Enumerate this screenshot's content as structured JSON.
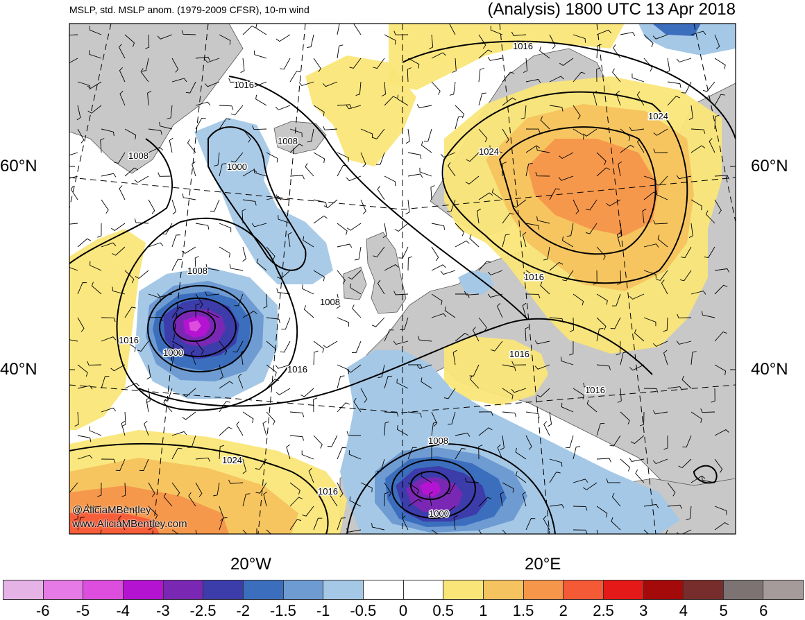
{
  "title_left": "MSLP, std. MSLP anom. (1979-2009 CFSR), 10-m wind",
  "title_right": "(Analysis) 1800 UTC 13 Apr 2018",
  "lat_labels": [
    "60°N",
    "40°N"
  ],
  "lon_labels": [
    "20°W",
    "20°E"
  ],
  "credits": [
    "@AliciaMBentley",
    "www.AliciaMBentley.com"
  ],
  "isobar_labels": [
    "1016",
    "1016",
    "1008",
    "1008",
    "1000",
    "1024",
    "1024",
    "1008",
    "1008",
    "1016",
    "1000",
    "1016",
    "1016",
    "1016",
    "1016",
    "1008",
    "1024",
    "1016",
    "1000"
  ],
  "colorbar": {
    "colors": [
      "#e6b3e6",
      "#e67ae6",
      "#de4ede",
      "#b414d2",
      "#7a28b4",
      "#3c3caa",
      "#3c6ebe",
      "#6e9bd2",
      "#a5c8e6",
      "#ffffff",
      "#ffffff",
      "#fae678",
      "#f5c35f",
      "#f5964b",
      "#f55a37",
      "#e61919",
      "#a50a0a",
      "#782d2d",
      "#7d7373",
      "#a59b9b"
    ],
    "ticks": [
      "-6",
      "-5",
      "-4",
      "-3",
      "-2.5",
      "-2",
      "-1.5",
      "-1",
      "-0.5",
      "0",
      "0.5",
      "1",
      "1.5",
      "2",
      "2.5",
      "3",
      "4",
      "5",
      "6"
    ]
  }
}
